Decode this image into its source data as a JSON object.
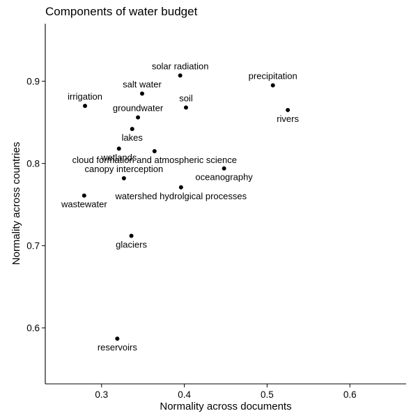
{
  "chart_data": {
    "type": "scatter",
    "title": "Components of water budget",
    "xlabel": "Normality across documents",
    "ylabel": "Normality across countries",
    "xlim": [
      0.232,
      0.668
    ],
    "ylim": [
      0.532,
      0.97
    ],
    "xticks": [
      {
        "value": 0.3,
        "label": "0.3"
      },
      {
        "value": 0.4,
        "label": "0.4"
      },
      {
        "value": 0.5,
        "label": "0.5"
      },
      {
        "value": 0.6,
        "label": "0.6"
      }
    ],
    "yticks": [
      {
        "value": 0.6,
        "label": "0.6"
      },
      {
        "value": 0.7,
        "label": "0.7"
      },
      {
        "value": 0.8,
        "label": "0.8"
      },
      {
        "value": 0.9,
        "label": "0.9"
      }
    ],
    "grid": false,
    "legend": "none",
    "points": [
      {
        "label": "solar radiation",
        "x": 0.395,
        "y": 0.907,
        "label_pos": "above"
      },
      {
        "label": "precipitation",
        "x": 0.507,
        "y": 0.895,
        "label_pos": "above"
      },
      {
        "label": "salt water",
        "x": 0.349,
        "y": 0.885,
        "label_pos": "above"
      },
      {
        "label": "irrigation",
        "x": 0.28,
        "y": 0.87,
        "label_pos": "above"
      },
      {
        "label": "soil",
        "x": 0.402,
        "y": 0.868,
        "label_pos": "above"
      },
      {
        "label": "rivers",
        "x": 0.525,
        "y": 0.865,
        "label_pos": "below"
      },
      {
        "label": "groundwater",
        "x": 0.344,
        "y": 0.856,
        "label_pos": "above"
      },
      {
        "label": "lakes",
        "x": 0.337,
        "y": 0.842,
        "label_pos": "below"
      },
      {
        "label": "wetlands",
        "x": 0.321,
        "y": 0.818,
        "label_pos": "below"
      },
      {
        "label": "cloud formation and atmospheric science",
        "x": 0.364,
        "y": 0.815,
        "label_pos": "below"
      },
      {
        "label": "oceanography",
        "x": 0.448,
        "y": 0.794,
        "label_pos": "below"
      },
      {
        "label": "canopy interception",
        "x": 0.327,
        "y": 0.782,
        "label_pos": "above"
      },
      {
        "label": "watershed hydrolgical processes",
        "x": 0.396,
        "y": 0.771,
        "label_pos": "below"
      },
      {
        "label": "wastewater",
        "x": 0.279,
        "y": 0.761,
        "label_pos": "below"
      },
      {
        "label": "glaciers",
        "x": 0.336,
        "y": 0.712,
        "label_pos": "below"
      },
      {
        "label": "reservoirs",
        "x": 0.319,
        "y": 0.587,
        "label_pos": "below"
      }
    ]
  }
}
